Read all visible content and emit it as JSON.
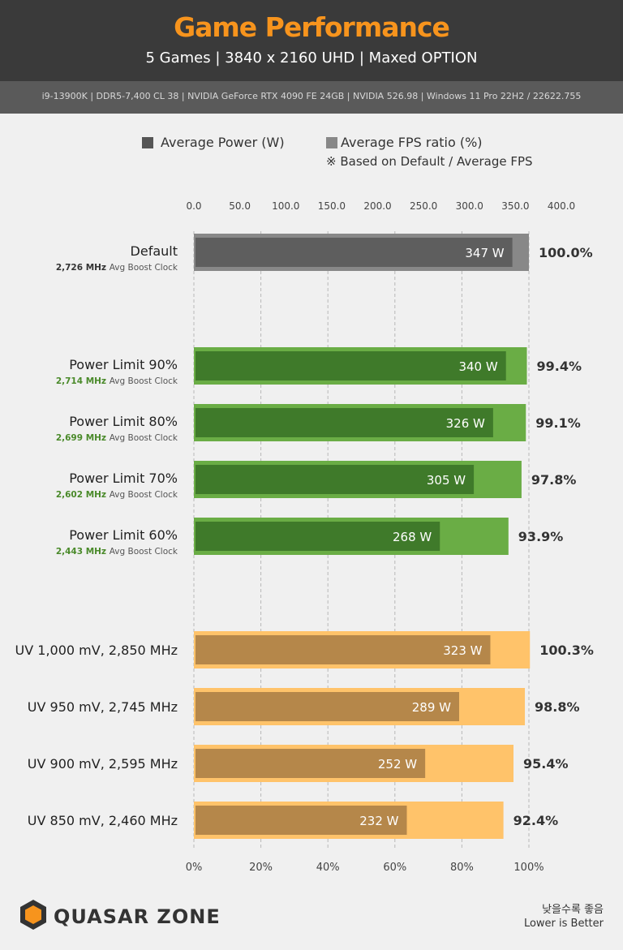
{
  "header": {
    "title": "Game Performance",
    "subtitle": "5 Games  |  3840 x 2160 UHD  |  Maxed OPTION",
    "specs": "i9-13900K  |  DDR5-7,400 CL 38  |  NVIDIA GeForce RTX 4090 FE 24GB  |  NVIDIA 526.98  |   Windows 11 Pro 22H2 / 22622.755"
  },
  "legend": {
    "power": "Average Power (W)",
    "fps": "Average FPS ratio (%)",
    "note": "※ Based on Default / Average FPS"
  },
  "footer": {
    "logo_text": "QUASAR ZONE",
    "note_korean": "낮을수록 좋음",
    "note_english": "Lower is Better"
  },
  "colors": {
    "default_fps": "#888888",
    "default_power": "#5e5e5e",
    "pl_fps": "#6aad45",
    "pl_power": "#3f7a2a",
    "uv_fps": "#ffc36a",
    "uv_power": "#b5874a",
    "pl_clock_text": "#4a8a2a"
  },
  "chart_data": {
    "type": "bar",
    "orientation": "horizontal",
    "top_axis": {
      "label": "Average Power (W)",
      "range": [
        0,
        400
      ],
      "ticks": [
        "0.0",
        "50.0",
        "100.0",
        "150.0",
        "200.0",
        "250.0",
        "300.0",
        "350.0",
        "400.0"
      ]
    },
    "bottom_axis": {
      "label": "Average FPS ratio (%)",
      "range": [
        0,
        100
      ],
      "ticks": [
        "0%",
        "20%",
        "40%",
        "60%",
        "80%",
        "100%"
      ]
    },
    "categories": [
      {
        "name": "Default",
        "clock": "2,726 MHz",
        "clock_suffix": "Avg Boost Clock",
        "group": "default",
        "power": 347,
        "power_label": "347 W",
        "fps_ratio": 100.0,
        "fps_label": "100.0%"
      },
      {
        "name": "Power Limit 90%",
        "clock": "2,714 MHz",
        "clock_suffix": "Avg Boost Clock",
        "group": "pl",
        "power": 340,
        "power_label": "340 W",
        "fps_ratio": 99.4,
        "fps_label": "99.4%"
      },
      {
        "name": "Power Limit 80%",
        "clock": "2,699 MHz",
        "clock_suffix": "Avg Boost Clock",
        "group": "pl",
        "power": 326,
        "power_label": "326 W",
        "fps_ratio": 99.1,
        "fps_label": "99.1%"
      },
      {
        "name": "Power Limit 70%",
        "clock": "2,602 MHz",
        "clock_suffix": "Avg Boost Clock",
        "group": "pl",
        "power": 305,
        "power_label": "305 W",
        "fps_ratio": 97.8,
        "fps_label": "97.8%"
      },
      {
        "name": "Power Limit 60%",
        "clock": "2,443 MHz",
        "clock_suffix": "Avg Boost Clock",
        "group": "pl",
        "power": 268,
        "power_label": "268 W",
        "fps_ratio": 93.9,
        "fps_label": "93.9%"
      },
      {
        "name": "UV 1,000 mV, 2,850 MHz",
        "clock": "",
        "clock_suffix": "",
        "group": "uv",
        "power": 323,
        "power_label": "323 W",
        "fps_ratio": 100.3,
        "fps_label": "100.3%"
      },
      {
        "name": "UV 950 mV, 2,745 MHz",
        "clock": "",
        "clock_suffix": "",
        "group": "uv",
        "power": 289,
        "power_label": "289 W",
        "fps_ratio": 98.8,
        "fps_label": "98.8%"
      },
      {
        "name": "UV 900 mV, 2,595 MHz",
        "clock": "",
        "clock_suffix": "",
        "group": "uv",
        "power": 252,
        "power_label": "252 W",
        "fps_ratio": 95.4,
        "fps_label": "95.4%"
      },
      {
        "name": "UV 850 mV, 2,460 MHz",
        "clock": "",
        "clock_suffix": "",
        "group": "uv",
        "power": 232,
        "power_label": "232 W",
        "fps_ratio": 92.4,
        "fps_label": "92.4%"
      }
    ],
    "grid": true,
    "legend_position": "top"
  }
}
